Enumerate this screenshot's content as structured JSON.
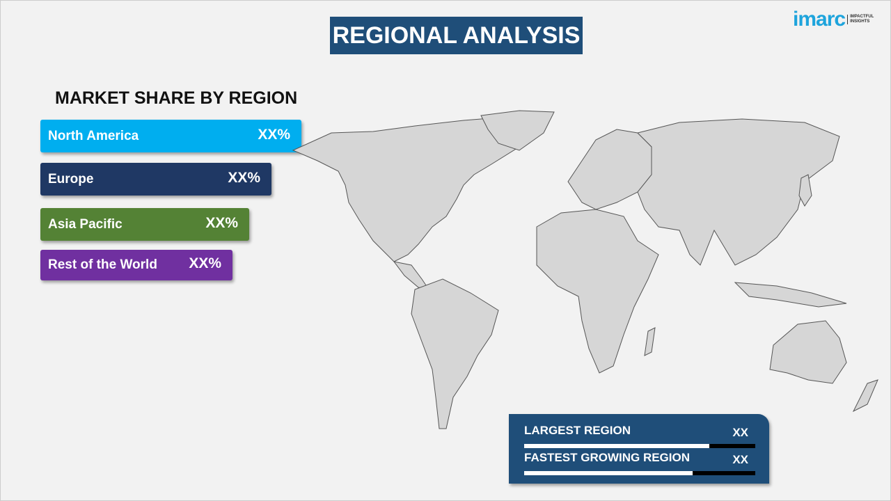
{
  "header": {
    "title": "REGIONAL ANALYSIS"
  },
  "logo": {
    "word": "imarc",
    "tagline": "IMPACTFUL INSIGHTS"
  },
  "market_share": {
    "title": "MARKET SHARE BY REGION",
    "regions": [
      {
        "label": "North America",
        "value": "XX%",
        "color": "#00aeef"
      },
      {
        "label": "Europe",
        "value": "XX%",
        "color": "#1f3864"
      },
      {
        "label": "Asia Pacific",
        "value": "XX%",
        "color": "#548235"
      },
      {
        "label": "Rest of the World",
        "value": "XX%",
        "color": "#7030a0"
      }
    ]
  },
  "stats": {
    "largest": {
      "label": "LARGEST REGION",
      "value": "XX",
      "fill_percent": 80
    },
    "fastest": {
      "label": "FASTEST GROWING REGION",
      "value": "XX",
      "fill_percent": 73
    }
  },
  "colors": {
    "accent": "#1f4e79",
    "map_land": "#d6d6d6",
    "map_border": "#555555"
  }
}
